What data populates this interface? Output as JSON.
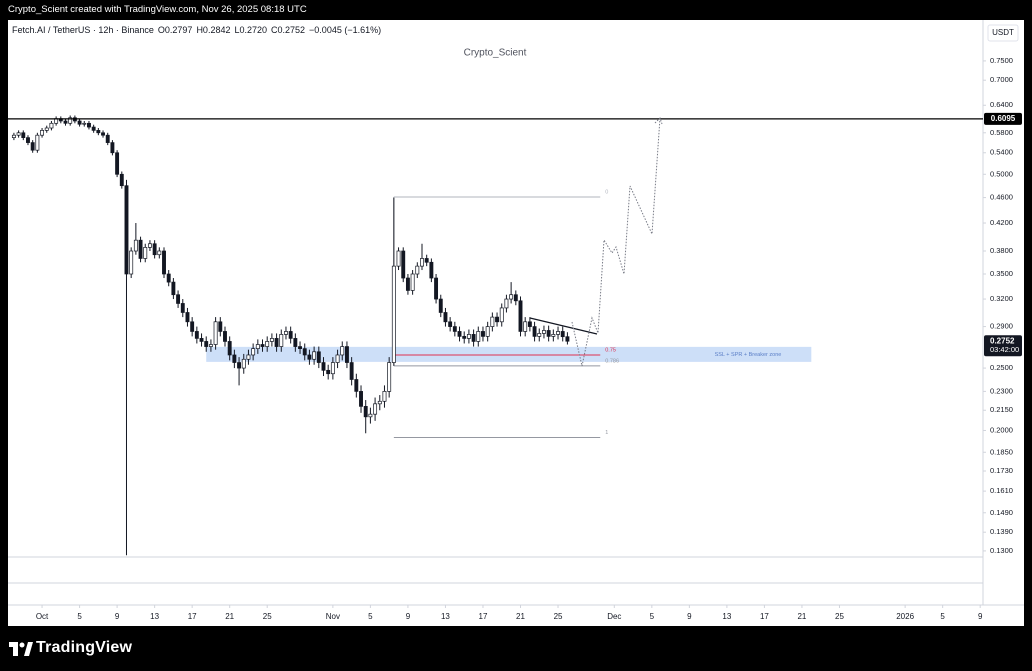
{
  "header": "Crypto_Scient created with TradingView.com, Nov 26, 2025 08:18 UTC",
  "footer_brand": "TradingView",
  "chart_data": {
    "type": "candlestick",
    "title": "Fetch.AI / TetherUS · 12h · Binance",
    "legend_values": [
      "O0.2797",
      "H0.2842",
      "L0.2720",
      "C0.2752",
      "−0.0045 (−1.61%)"
    ],
    "subtitle": "Crypto_Scient",
    "currency": "USDT",
    "countdown": "03:42:00",
    "colors": {
      "up": "#ffffff",
      "down": "#131722",
      "wick": "#131722"
    },
    "log_scale": true,
    "grid": false,
    "ylim": [
      0.1272,
      0.862
    ],
    "yticks": [
      {
        "value": 0.75,
        "label": "0.7500"
      },
      {
        "value": 0.7,
        "label": "0.7000"
      },
      {
        "value": 0.64,
        "label": "0.6400"
      },
      {
        "value": 0.58,
        "label": "0.5800"
      },
      {
        "value": 0.54,
        "label": "0.5400"
      },
      {
        "value": 0.5,
        "label": "0.5000"
      },
      {
        "value": 0.46,
        "label": "0.4600"
      },
      {
        "value": 0.42,
        "label": "0.4200"
      },
      {
        "value": 0.38,
        "label": "0.3800"
      },
      {
        "value": 0.35,
        "label": "0.3500"
      },
      {
        "value": 0.32,
        "label": "0.3200"
      },
      {
        "value": 0.29,
        "label": "0.2900"
      },
      {
        "value": 0.25,
        "label": "0.2500"
      },
      {
        "value": 0.23,
        "label": "0.2300"
      },
      {
        "value": 0.215,
        "label": "0.2150"
      },
      {
        "value": 0.2,
        "label": "0.2000"
      },
      {
        "value": 0.185,
        "label": "0.1850"
      },
      {
        "value": 0.173,
        "label": "0.1730"
      },
      {
        "value": 0.161,
        "label": "0.1610"
      },
      {
        "value": 0.149,
        "label": "0.1490"
      },
      {
        "value": 0.139,
        "label": "0.1390"
      },
      {
        "value": 0.13,
        "label": "0.1300"
      }
    ],
    "xlim": [
      -1.26,
      206.6
    ],
    "xticks": [
      {
        "value": 6,
        "label": "Oct"
      },
      {
        "value": 14,
        "label": "5"
      },
      {
        "value": 22,
        "label": "9"
      },
      {
        "value": 30,
        "label": "13"
      },
      {
        "value": 38,
        "label": "17"
      },
      {
        "value": 46,
        "label": "21"
      },
      {
        "value": 54,
        "label": "25"
      },
      {
        "value": 68,
        "label": "Nov"
      },
      {
        "value": 76,
        "label": "5"
      },
      {
        "value": 84,
        "label": "9"
      },
      {
        "value": 92,
        "label": "13"
      },
      {
        "value": 100,
        "label": "17"
      },
      {
        "value": 108,
        "label": "21"
      },
      {
        "value": 116,
        "label": "25"
      },
      {
        "value": 128,
        "label": "Dec"
      },
      {
        "value": 136,
        "label": "5"
      },
      {
        "value": 144,
        "label": "9"
      },
      {
        "value": 152,
        "label": "13"
      },
      {
        "value": 160,
        "label": "17"
      },
      {
        "value": 168,
        "label": "21"
      },
      {
        "value": 176,
        "label": "25"
      },
      {
        "value": 190,
        "label": "2026"
      },
      {
        "value": 198,
        "label": "5"
      },
      {
        "value": 206,
        "label": "9"
      }
    ],
    "open": [
      0.57,
      0.575,
      0.58,
      0.57,
      0.56,
      0.545,
      0.575,
      0.585,
      0.59,
      0.6,
      0.61,
      0.605,
      0.6,
      0.612,
      0.605,
      0.598,
      0.6,
      0.592,
      0.585,
      0.58,
      0.575,
      0.56,
      0.54,
      0.5,
      0.48,
      0.35,
      0.38,
      0.395,
      0.37,
      0.385,
      0.39,
      0.375,
      0.38,
      0.35,
      0.34,
      0.325,
      0.315,
      0.305,
      0.295,
      0.285,
      0.278,
      0.275,
      0.27,
      0.272,
      0.295,
      0.285,
      0.275,
      0.262,
      0.255,
      0.25,
      0.258,
      0.262,
      0.268,
      0.272,
      0.27,
      0.275,
      0.278,
      0.27,
      0.282,
      0.285,
      0.278,
      0.27,
      0.268,
      0.262,
      0.258,
      0.265,
      0.255,
      0.248,
      0.245,
      0.255,
      0.262,
      0.27,
      0.255,
      0.24,
      0.23,
      0.218,
      0.21,
      0.212,
      0.22,
      0.222,
      0.23,
      0.255,
      0.36,
      0.38,
      0.345,
      0.33,
      0.35,
      0.36,
      0.37,
      0.365,
      0.345,
      0.32,
      0.305,
      0.295,
      0.29,
      0.285,
      0.28,
      0.278,
      0.282,
      0.275,
      0.285,
      0.28,
      0.29,
      0.3,
      0.295,
      0.31,
      0.32,
      0.325,
      0.318,
      0.285,
      0.295,
      0.29,
      0.28,
      0.283,
      0.286,
      0.28,
      0.282,
      0.285,
      0.2797
    ],
    "high": [
      0.58,
      0.585,
      0.585,
      0.575,
      0.565,
      0.58,
      0.59,
      0.595,
      0.605,
      0.615,
      0.615,
      0.61,
      0.617,
      0.617,
      0.61,
      0.605,
      0.605,
      0.597,
      0.59,
      0.585,
      0.58,
      0.565,
      0.545,
      0.505,
      0.49,
      0.385,
      0.42,
      0.4,
      0.39,
      0.395,
      0.395,
      0.385,
      0.385,
      0.355,
      0.345,
      0.33,
      0.32,
      0.31,
      0.3,
      0.29,
      0.283,
      0.28,
      0.277,
      0.3,
      0.3,
      0.29,
      0.28,
      0.267,
      0.26,
      0.263,
      0.267,
      0.273,
      0.277,
      0.277,
      0.28,
      0.283,
      0.283,
      0.287,
      0.29,
      0.29,
      0.283,
      0.275,
      0.273,
      0.267,
      0.27,
      0.27,
      0.26,
      0.253,
      0.26,
      0.267,
      0.275,
      0.275,
      0.26,
      0.245,
      0.235,
      0.223,
      0.217,
      0.225,
      0.227,
      0.235,
      0.26,
      0.46,
      0.385,
      0.385,
      0.35,
      0.355,
      0.365,
      0.39,
      0.375,
      0.37,
      0.35,
      0.325,
      0.31,
      0.3,
      0.295,
      0.29,
      0.285,
      0.287,
      0.287,
      0.29,
      0.29,
      0.295,
      0.305,
      0.305,
      0.315,
      0.325,
      0.34,
      0.33,
      0.323,
      0.3,
      0.3,
      0.295,
      0.288,
      0.291,
      0.291,
      0.287,
      0.29,
      0.29,
      0.2842
    ],
    "low": [
      0.565,
      0.57,
      0.565,
      0.555,
      0.54,
      0.54,
      0.57,
      0.58,
      0.585,
      0.595,
      0.6,
      0.595,
      0.595,
      0.6,
      0.593,
      0.593,
      0.587,
      0.58,
      0.575,
      0.57,
      0.555,
      0.535,
      0.495,
      0.475,
      0.128,
      0.345,
      0.375,
      0.365,
      0.365,
      0.38,
      0.37,
      0.37,
      0.345,
      0.335,
      0.32,
      0.31,
      0.3,
      0.29,
      0.28,
      0.273,
      0.27,
      0.265,
      0.265,
      0.267,
      0.28,
      0.27,
      0.257,
      0.25,
      0.235,
      0.245,
      0.253,
      0.257,
      0.263,
      0.265,
      0.265,
      0.27,
      0.265,
      0.265,
      0.277,
      0.273,
      0.265,
      0.263,
      0.257,
      0.253,
      0.253,
      0.25,
      0.243,
      0.24,
      0.24,
      0.25,
      0.257,
      0.25,
      0.235,
      0.225,
      0.213,
      0.198,
      0.205,
      0.207,
      0.215,
      0.217,
      0.225,
      0.252,
      0.355,
      0.34,
      0.325,
      0.325,
      0.345,
      0.355,
      0.36,
      0.34,
      0.315,
      0.3,
      0.29,
      0.285,
      0.28,
      0.275,
      0.273,
      0.273,
      0.27,
      0.27,
      0.275,
      0.275,
      0.285,
      0.29,
      0.29,
      0.305,
      0.315,
      0.313,
      0.28,
      0.28,
      0.285,
      0.275,
      0.275,
      0.278,
      0.275,
      0.275,
      0.277,
      0.275,
      0.272
    ],
    "close": [
      0.575,
      0.58,
      0.57,
      0.56,
      0.545,
      0.575,
      0.585,
      0.59,
      0.6,
      0.61,
      0.605,
      0.6,
      0.612,
      0.605,
      0.598,
      0.6,
      0.592,
      0.585,
      0.58,
      0.575,
      0.56,
      0.54,
      0.5,
      0.48,
      0.35,
      0.38,
      0.395,
      0.37,
      0.385,
      0.39,
      0.375,
      0.38,
      0.35,
      0.34,
      0.325,
      0.315,
      0.305,
      0.295,
      0.285,
      0.278,
      0.275,
      0.27,
      0.272,
      0.295,
      0.285,
      0.275,
      0.262,
      0.255,
      0.25,
      0.258,
      0.262,
      0.268,
      0.272,
      0.27,
      0.275,
      0.278,
      0.27,
      0.282,
      0.285,
      0.278,
      0.27,
      0.268,
      0.262,
      0.258,
      0.265,
      0.255,
      0.248,
      0.245,
      0.255,
      0.262,
      0.27,
      0.255,
      0.24,
      0.23,
      0.218,
      0.21,
      0.212,
      0.22,
      0.222,
      0.23,
      0.255,
      0.36,
      0.38,
      0.345,
      0.33,
      0.35,
      0.36,
      0.37,
      0.365,
      0.345,
      0.32,
      0.305,
      0.295,
      0.29,
      0.285,
      0.28,
      0.278,
      0.282,
      0.275,
      0.285,
      0.28,
      0.29,
      0.3,
      0.295,
      0.31,
      0.32,
      0.325,
      0.318,
      0.285,
      0.295,
      0.29,
      0.28,
      0.283,
      0.286,
      0.28,
      0.282,
      0.285,
      0.2797,
      0.2752
    ],
    "hlines": [
      {
        "value": 0.6095,
        "color": "#000000"
      }
    ],
    "zone": {
      "low": 0.2556,
      "high": 0.2697,
      "start": 41,
      "end": 170,
      "label": "SSL + SPR + Breaker zone",
      "color": "#bcd4f5"
    },
    "fib": {
      "start": 81,
      "end": 125,
      "levels": [
        {
          "value": 0.461,
          "label": "0",
          "color": "#b2b5be"
        },
        {
          "value": 0.262,
          "label": "0.75",
          "color": "#e0304f"
        },
        {
          "value": 0.252,
          "label": "0.786",
          "color": "#9598a1"
        },
        {
          "value": 0.195,
          "label": "1",
          "color": "#9598a1"
        }
      ]
    }
  }
}
